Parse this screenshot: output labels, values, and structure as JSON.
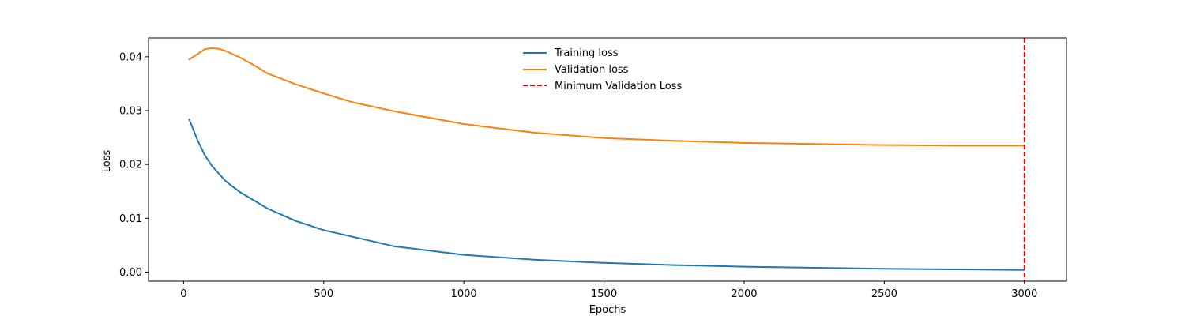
{
  "chart_data": {
    "type": "line",
    "xlabel": "Epochs",
    "ylabel": "Loss",
    "xlim": [
      -125,
      3150
    ],
    "ylim": [
      -0.0017,
      0.0435
    ],
    "x_ticks": [
      0,
      500,
      1000,
      1500,
      2000,
      2500,
      3000
    ],
    "y_ticks": [
      0.0,
      0.01,
      0.02,
      0.03,
      0.04
    ],
    "x_tick_labels": [
      "0",
      "500",
      "1000",
      "1500",
      "2000",
      "2500",
      "3000"
    ],
    "y_tick_labels": [
      "0.00",
      "0.01",
      "0.02",
      "0.03",
      "0.04"
    ],
    "grid": false,
    "legend_position": "upper center",
    "series": [
      {
        "name": "Training loss",
        "color": "#1f77b4",
        "x": [
          20,
          50,
          75,
          100,
          150,
          200,
          300,
          400,
          500,
          750,
          1000,
          1250,
          1500,
          1750,
          2000,
          2250,
          2500,
          2750,
          3000
        ],
        "values": [
          0.0284,
          0.0245,
          0.0218,
          0.0198,
          0.0169,
          0.0149,
          0.0118,
          0.0095,
          0.0078,
          0.0048,
          0.0032,
          0.0023,
          0.0017,
          0.0013,
          0.001,
          0.0008,
          0.0006,
          0.0005,
          0.0004
        ]
      },
      {
        "name": "Validation loss",
        "color": "#ff7f0e",
        "x": [
          20,
          50,
          75,
          100,
          125,
          150,
          200,
          250,
          300,
          400,
          500,
          600,
          750,
          1000,
          1250,
          1500,
          1750,
          2000,
          2250,
          2500,
          2750,
          3000
        ],
        "values": [
          0.0395,
          0.0405,
          0.0414,
          0.0416,
          0.0415,
          0.0411,
          0.0399,
          0.0385,
          0.0369,
          0.0349,
          0.0332,
          0.0316,
          0.0299,
          0.0275,
          0.0259,
          0.0249,
          0.0244,
          0.024,
          0.0238,
          0.0236,
          0.0235,
          0.0235
        ]
      }
    ],
    "vlines": [
      {
        "name": "Minimum Validation Loss",
        "x": 3000,
        "color": "#ff0000",
        "style": "dashed"
      }
    ]
  }
}
